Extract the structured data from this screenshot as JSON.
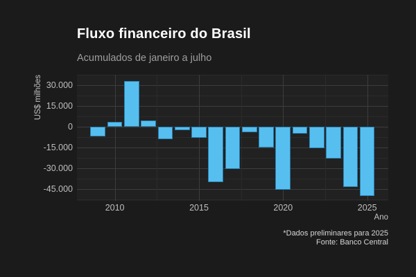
{
  "chart_data": {
    "type": "bar",
    "title": "Fluxo financeiro do Brasil",
    "subtitle": "Acumulados de janeiro a julho",
    "xlabel": "Ano",
    "ylabel": "US$ milhões",
    "caption": [
      "*Dados preliminares para 2025",
      "Fonte: Banco Central"
    ],
    "x": [
      2009,
      2010,
      2011,
      2012,
      2013,
      2014,
      2015,
      2016,
      2017,
      2018,
      2019,
      2020,
      2021,
      2022,
      2023,
      2024,
      2025
    ],
    "values": [
      -7000,
      3800,
      33000,
      4500,
      -9000,
      -2500,
      -8000,
      -39800,
      -30400,
      -3700,
      -14700,
      -45400,
      -4700,
      -15500,
      -23000,
      -43400,
      -49700
    ],
    "unit": "US$ milhões",
    "xlim": [
      2007.75,
      2026.25
    ],
    "ylim": [
      -53350,
      37650
    ],
    "y_major_ticks": [
      {
        "value": 30000,
        "label": "30.000"
      },
      {
        "value": 15000,
        "label": "15.000"
      },
      {
        "value": 0,
        "label": "0"
      },
      {
        "value": -15000,
        "label": "-15.000"
      },
      {
        "value": -30000,
        "label": "-30.000"
      },
      {
        "value": -45000,
        "label": "-45.000"
      }
    ],
    "y_minor_ticks": [
      37500,
      22500,
      7500,
      -7500,
      -22500,
      -37500,
      -52500
    ],
    "x_major_ticks": [
      {
        "value": 2010,
        "label": "2010"
      },
      {
        "value": 2015,
        "label": "2015"
      },
      {
        "value": 2020,
        "label": "2020"
      },
      {
        "value": 2025,
        "label": "2025"
      }
    ],
    "x_minor_ticks": [
      2012.5,
      2017.5,
      2022.5
    ],
    "grid": "major-and-minor, dark theme",
    "legend_position": "none",
    "bar_relative_width": 0.9,
    "colors": {
      "bar_fill": "#56bff0",
      "bar_border": "#2a7fae",
      "background": "#1b1b1b",
      "panel_background": "#212121",
      "grid_major": "#3d3d3d",
      "grid_minor": "#2b2b2b",
      "title": "#ffffff",
      "subtitle": "#9e9e9e",
      "tick_label": "#bfbfbf",
      "axis_title": "#c3c3c3",
      "caption": "#d6d6d6"
    }
  }
}
